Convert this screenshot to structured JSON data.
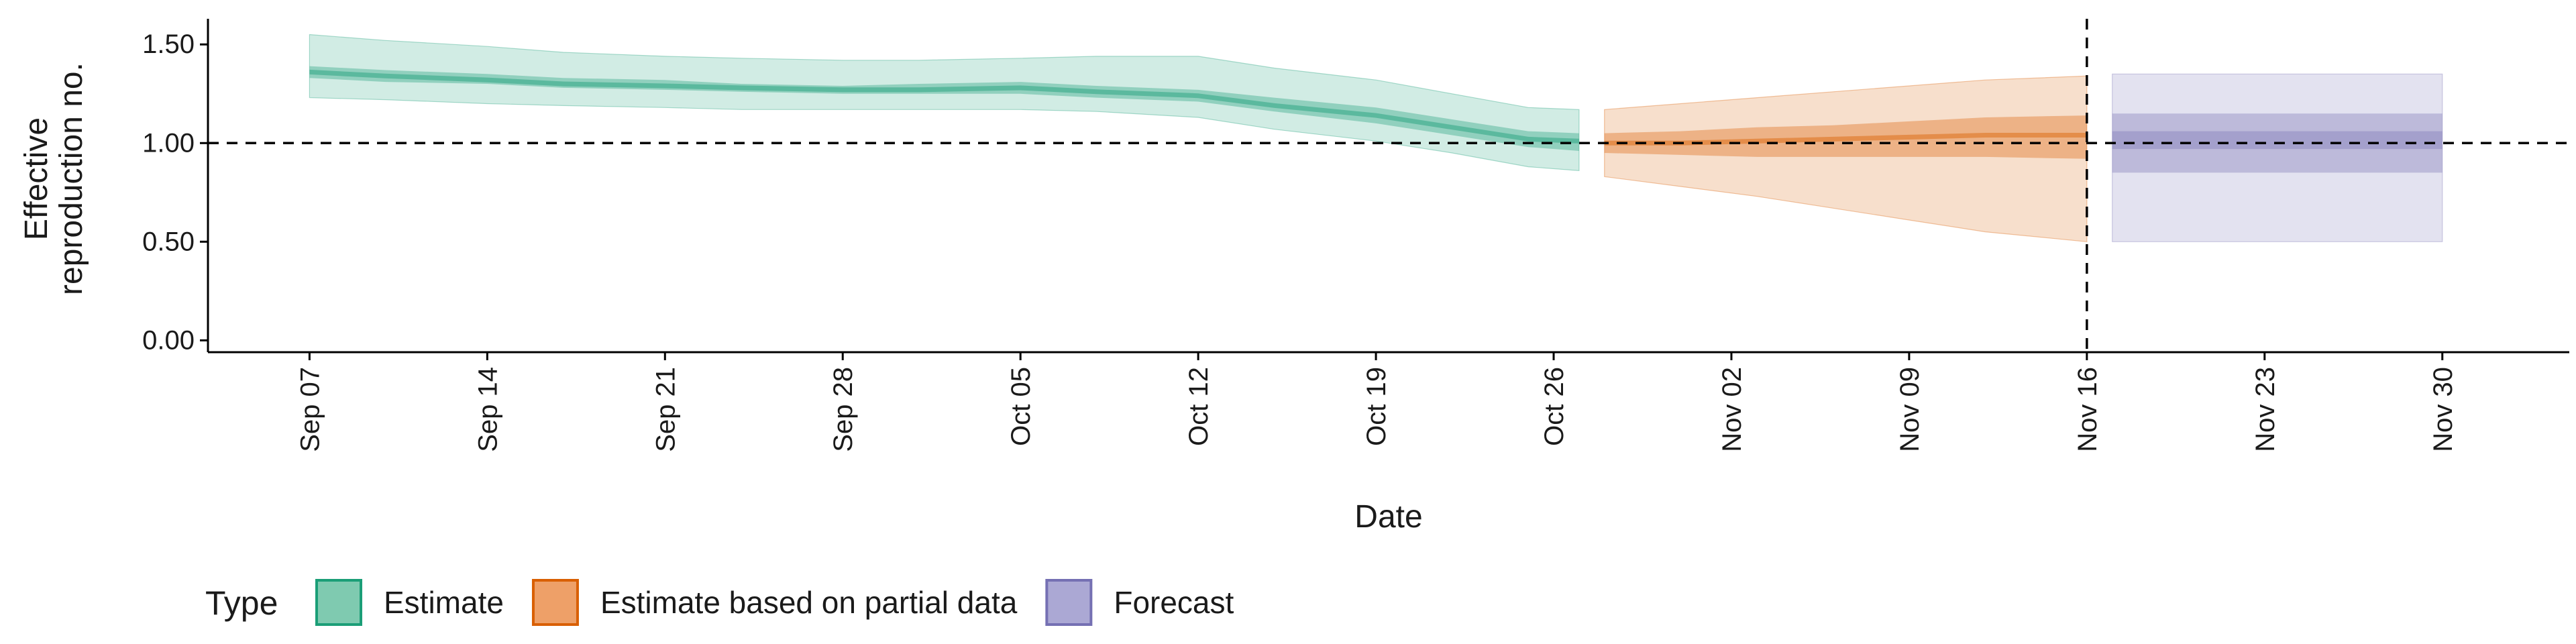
{
  "chart_data": {
    "type": "area",
    "xlabel": "Date",
    "ylabel_lines": [
      "Effective",
      "reproduction no."
    ],
    "x_ticks": [
      "Sep 07",
      "Sep 14",
      "Sep 21",
      "Sep 28",
      "Oct 05",
      "Oct 12",
      "Oct 19",
      "Oct 26",
      "Nov 02",
      "Nov 09",
      "Nov 16",
      "Nov 23",
      "Nov 30"
    ],
    "y_ticks": [
      "0.00",
      "0.50",
      "1.00",
      "1.50"
    ],
    "xlim": [
      "2020-09-03",
      "2020-12-05"
    ],
    "ylim": [
      -0.06,
      1.63
    ],
    "reference_lines": {
      "horizontal_y": 1.0,
      "vertical_x": "2020-11-16",
      "style": "dashed"
    },
    "legend": {
      "title": "Type",
      "position": "bottom",
      "items": [
        {
          "label": "Estimate",
          "fill": "#7fcab0",
          "stroke": "#1b9e77"
        },
        {
          "label": "Estimate based on partial data",
          "fill": "#eea068",
          "stroke": "#d95f02"
        },
        {
          "label": "Forecast",
          "fill": "#aba8d4",
          "stroke": "#7570b3"
        }
      ]
    },
    "series": [
      {
        "name": "Estimate",
        "color": "#1b9e77",
        "dates": [
          "2020-09-07",
          "2020-09-10",
          "2020-09-14",
          "2020-09-17",
          "2020-09-21",
          "2020-09-24",
          "2020-09-28",
          "2020-10-01",
          "2020-10-05",
          "2020-10-08",
          "2020-10-12",
          "2020-10-15",
          "2020-10-19",
          "2020-10-22",
          "2020-10-25",
          "2020-10-27"
        ],
        "median": [
          1.36,
          1.34,
          1.32,
          1.3,
          1.29,
          1.28,
          1.27,
          1.27,
          1.28,
          1.26,
          1.24,
          1.19,
          1.14,
          1.08,
          1.02,
          1.01
        ],
        "ci50": [
          [
            1.33,
            1.39
          ],
          [
            1.31,
            1.37
          ],
          [
            1.3,
            1.35
          ],
          [
            1.28,
            1.33
          ],
          [
            1.27,
            1.32
          ],
          [
            1.26,
            1.3
          ],
          [
            1.25,
            1.29
          ],
          [
            1.25,
            1.3
          ],
          [
            1.25,
            1.31
          ],
          [
            1.23,
            1.29
          ],
          [
            1.21,
            1.27
          ],
          [
            1.16,
            1.23
          ],
          [
            1.1,
            1.18
          ],
          [
            1.04,
            1.12
          ],
          [
            0.98,
            1.06
          ],
          [
            0.96,
            1.05
          ]
        ],
        "ci90": [
          [
            1.23,
            1.55
          ],
          [
            1.22,
            1.52
          ],
          [
            1.2,
            1.49
          ],
          [
            1.19,
            1.46
          ],
          [
            1.18,
            1.44
          ],
          [
            1.17,
            1.43
          ],
          [
            1.17,
            1.42
          ],
          [
            1.17,
            1.42
          ],
          [
            1.17,
            1.43
          ],
          [
            1.16,
            1.44
          ],
          [
            1.13,
            1.44
          ],
          [
            1.07,
            1.38
          ],
          [
            1.01,
            1.32
          ],
          [
            0.95,
            1.25
          ],
          [
            0.88,
            1.18
          ],
          [
            0.86,
            1.17
          ]
        ]
      },
      {
        "name": "Estimate based on partial data",
        "color": "#d95f02",
        "dates": [
          "2020-10-28",
          "2020-10-31",
          "2020-11-03",
          "2020-11-06",
          "2020-11-09",
          "2020-11-12",
          "2020-11-16"
        ],
        "median": [
          1.0,
          1.0,
          1.01,
          1.02,
          1.03,
          1.04,
          1.04
        ],
        "ci50": [
          [
            0.95,
            1.05
          ],
          [
            0.94,
            1.06
          ],
          [
            0.93,
            1.08
          ],
          [
            0.93,
            1.09
          ],
          [
            0.93,
            1.11
          ],
          [
            0.93,
            1.13
          ],
          [
            0.92,
            1.14
          ]
        ],
        "ci90": [
          [
            0.83,
            1.17
          ],
          [
            0.78,
            1.2
          ],
          [
            0.73,
            1.23
          ],
          [
            0.67,
            1.26
          ],
          [
            0.61,
            1.29
          ],
          [
            0.55,
            1.32
          ],
          [
            0.5,
            1.34
          ]
        ]
      },
      {
        "name": "Forecast",
        "color": "#7570b3",
        "dates": [
          "2020-11-17",
          "2020-11-30"
        ],
        "median": [
          1.0,
          1.0
        ],
        "ci20": [
          [
            0.97,
            1.06
          ],
          [
            0.97,
            1.06
          ]
        ],
        "ci50": [
          [
            0.85,
            1.15
          ],
          [
            0.85,
            1.15
          ]
        ],
        "ci90": [
          [
            0.5,
            1.35
          ],
          [
            0.5,
            1.35
          ]
        ]
      }
    ]
  }
}
